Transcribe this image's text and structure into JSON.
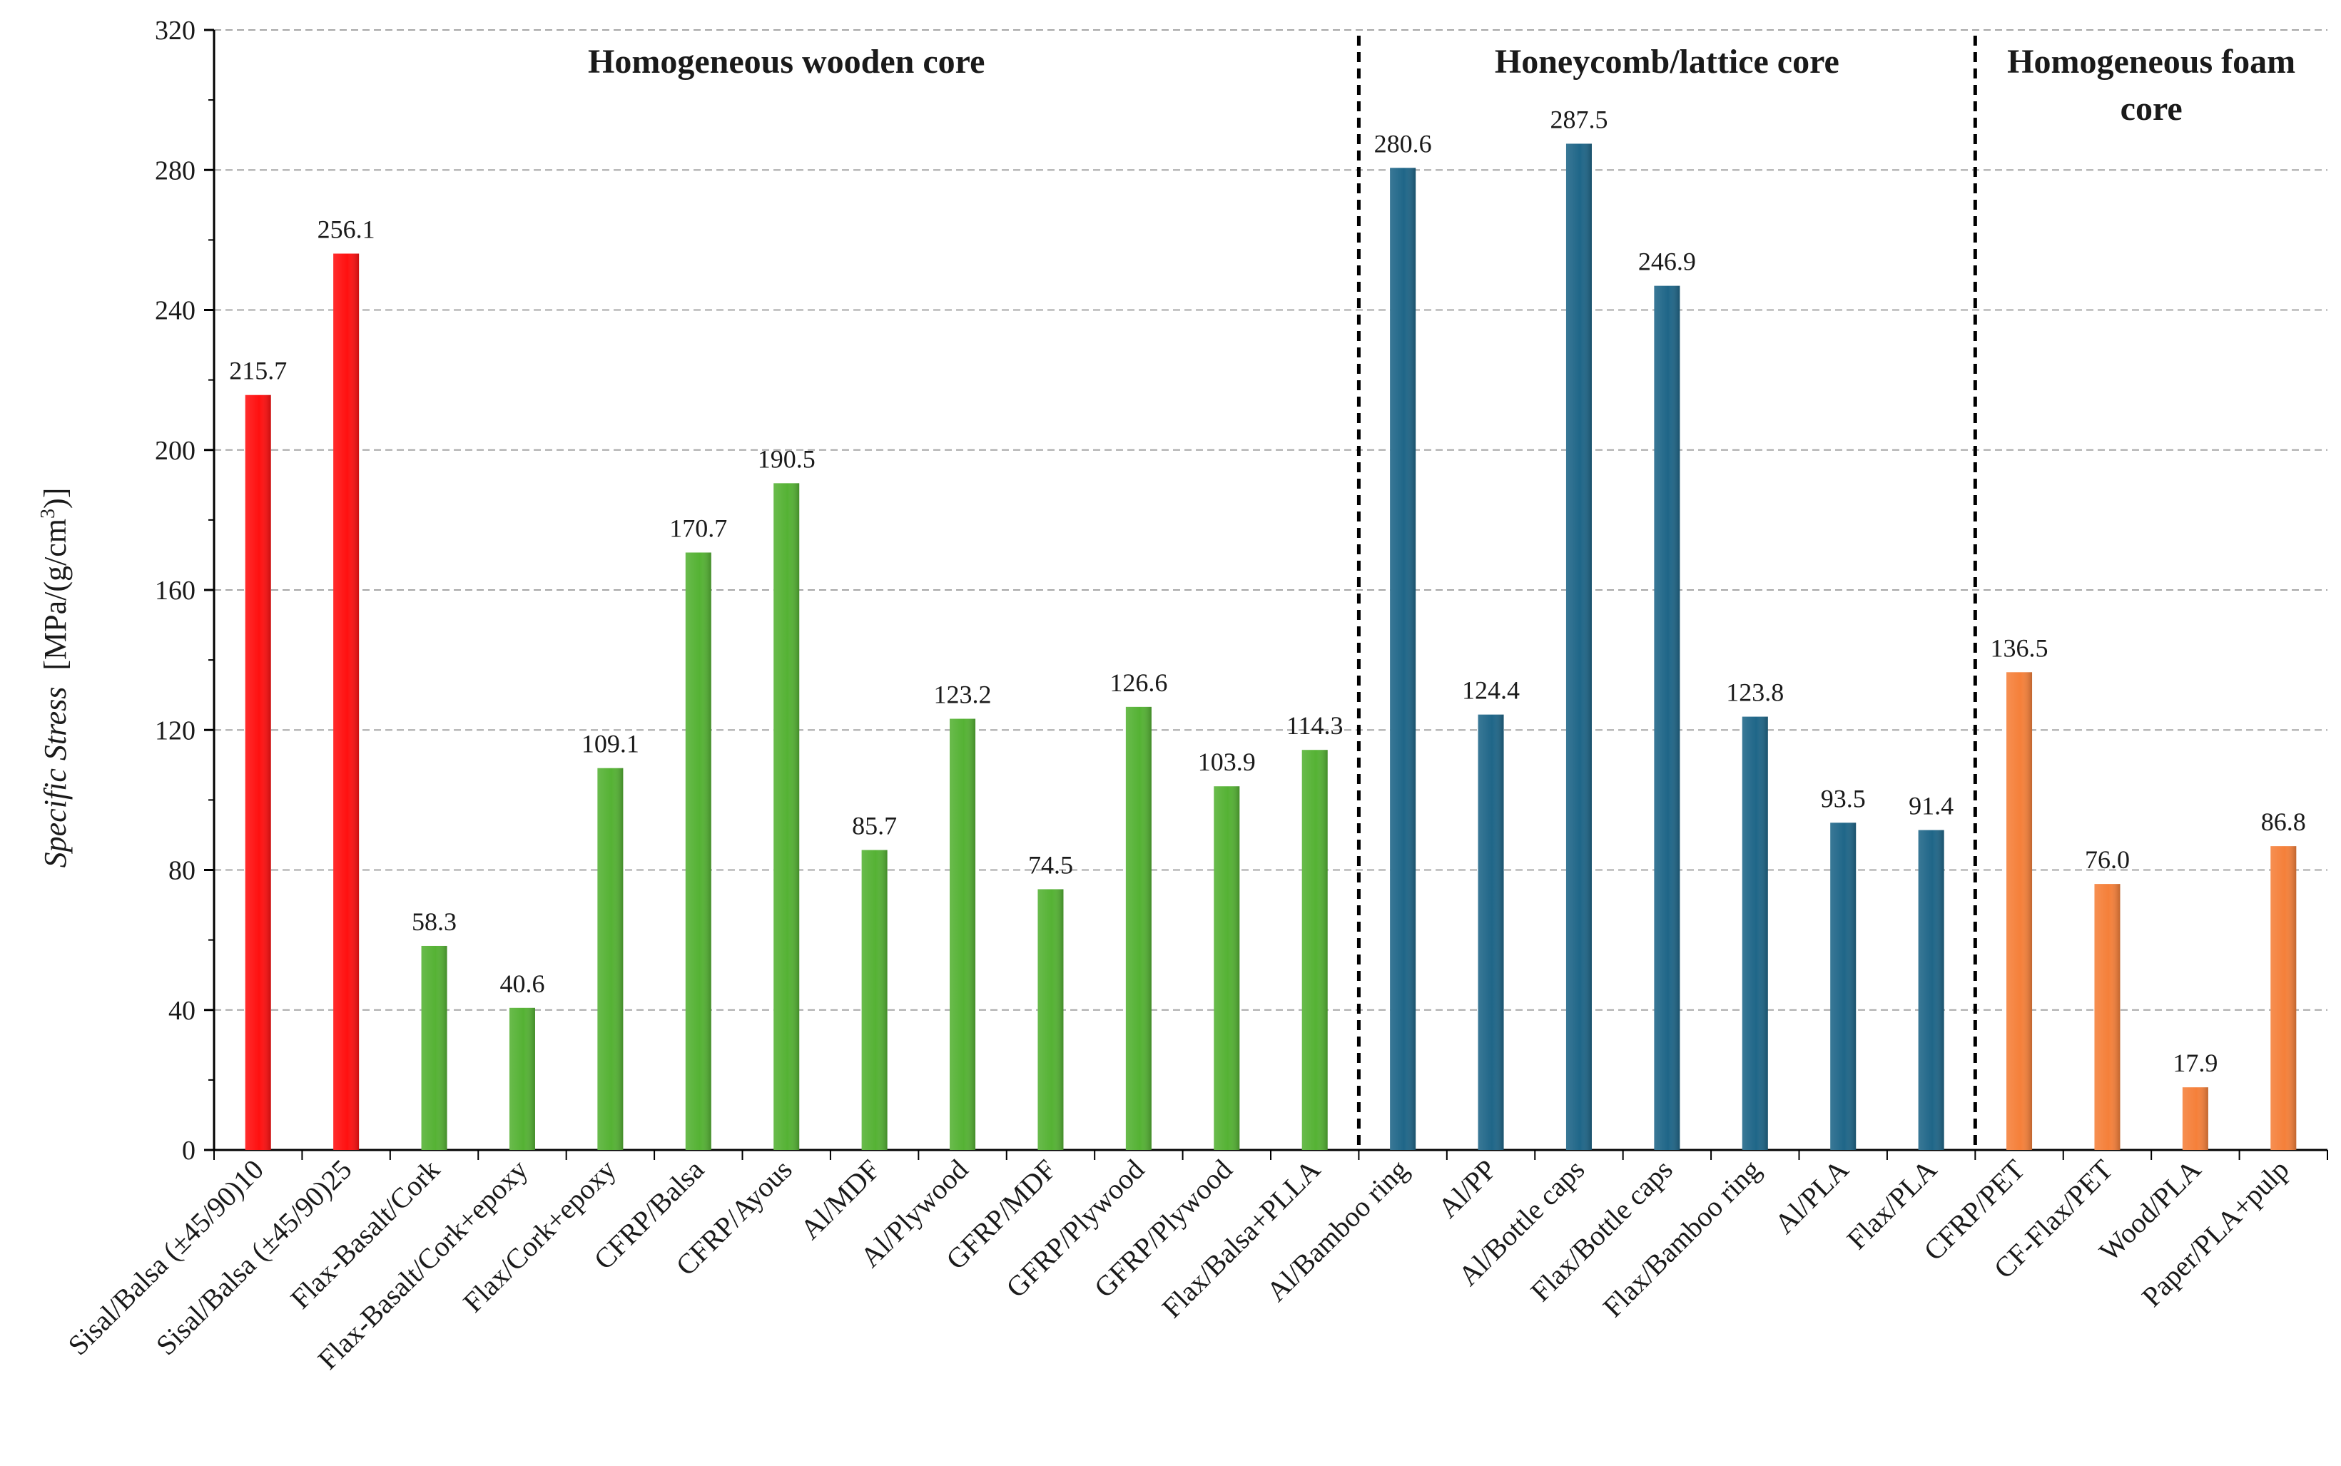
{
  "chart_data": {
    "type": "bar",
    "title": "",
    "xlabel": "",
    "ylabel_italic": "Specific Stress",
    "ylabel_units_prefix": "[MPa/(g/cm",
    "ylabel_units_sup": "3",
    "ylabel_units_suffix": ")]",
    "ylim": [
      0,
      320
    ],
    "yticks": [
      0,
      40,
      80,
      120,
      160,
      200,
      240,
      280,
      320
    ],
    "grid": true,
    "colors": {
      "red": "#ff1010",
      "green": "#55b234",
      "blue": "#1f6688",
      "orange": "#f5803a"
    },
    "groups": [
      {
        "title_lines": [
          "Homogeneous wooden core"
        ],
        "start": 0,
        "end": 12
      },
      {
        "title_lines": [
          "Honeycomb/lattice core"
        ],
        "start": 13,
        "end": 19
      },
      {
        "title_lines": [
          "Homogeneous foam",
          "core"
        ],
        "start": 20,
        "end": 23
      }
    ],
    "bars": [
      {
        "category": "Sisal/Balsa (±45/90)10",
        "value": 215.7,
        "label": "215.7",
        "color": "red"
      },
      {
        "category": "Sisal/Balsa (±45/90)25",
        "value": 256.1,
        "label": "256.1",
        "color": "red"
      },
      {
        "category": "Flax-Basalt/Cork",
        "value": 58.3,
        "label": "58.3",
        "color": "green"
      },
      {
        "category": "Flax-Basalt/Cork+epoxy",
        "value": 40.6,
        "label": "40.6",
        "color": "green"
      },
      {
        "category": "Flax/Cork+epoxy",
        "value": 109.1,
        "label": "109.1",
        "color": "green"
      },
      {
        "category": "CFRP/Balsa",
        "value": 170.7,
        "label": "170.7",
        "color": "green"
      },
      {
        "category": "CFRP/Ayous",
        "value": 190.5,
        "label": "190.5",
        "color": "green"
      },
      {
        "category": "Al/MDF",
        "value": 85.7,
        "label": "85.7",
        "color": "green"
      },
      {
        "category": "Al/Plywood",
        "value": 123.2,
        "label": "123.2",
        "color": "green"
      },
      {
        "category": "GFRP/MDF",
        "value": 74.5,
        "label": "74.5",
        "color": "green"
      },
      {
        "category": "GFRP/Plywood",
        "value": 126.6,
        "label": "126.6",
        "color": "green"
      },
      {
        "category": "GFRP/Plywood",
        "value": 103.9,
        "label": "103.9",
        "color": "green"
      },
      {
        "category": "Flax/Balsa+PLLA",
        "value": 114.3,
        "label": "114.3",
        "color": "green"
      },
      {
        "category": "Al/Bamboo ring",
        "value": 280.6,
        "label": "280.6",
        "color": "blue"
      },
      {
        "category": "Al/PP",
        "value": 124.4,
        "label": "124.4",
        "color": "blue"
      },
      {
        "category": "Al/Bottle caps",
        "value": 287.5,
        "label": "287.5",
        "color": "blue"
      },
      {
        "category": "Flax/Bottle caps",
        "value": 246.9,
        "label": "246.9",
        "color": "blue"
      },
      {
        "category": "Flax/Bamboo ring",
        "value": 123.8,
        "label": "123.8",
        "color": "blue"
      },
      {
        "category": "Al/PLA",
        "value": 93.5,
        "label": "93.5",
        "color": "blue"
      },
      {
        "category": "Flax/PLA",
        "value": 91.4,
        "label": "91.4",
        "color": "blue"
      },
      {
        "category": "CFRP/PET",
        "value": 136.5,
        "label": "136.5",
        "color": "orange"
      },
      {
        "category": "CF-Flax/PET",
        "value": 76.0,
        "label": "76.0",
        "color": "orange"
      },
      {
        "category": "Wood/PLA",
        "value": 17.9,
        "label": "17.9",
        "color": "orange"
      },
      {
        "category": "Paper/PLA+pulp",
        "value": 86.8,
        "label": "86.8",
        "color": "orange"
      }
    ]
  }
}
